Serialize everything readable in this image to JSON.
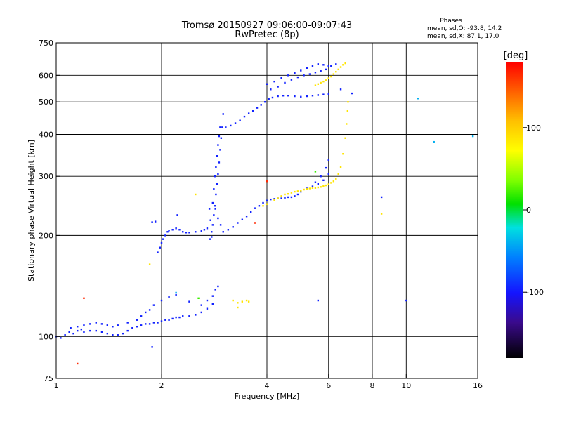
{
  "title_line1": "Tromsø 20150927 09:06:00-09:07:43",
  "title_line2": "RwPretec (8p)",
  "phases": {
    "header": "Phases",
    "line_o": "mean, sd,O: -93.8, 14.2",
    "line_x": "mean, sd,X:  87.1, 17.0"
  },
  "colorbar": {
    "label": "[deg]",
    "range": [
      -180,
      180
    ],
    "ticks": [
      100,
      0,
      -100
    ],
    "tick_labels": [
      "100",
      "0",
      "-100"
    ]
  },
  "chart_data": {
    "type": "scatter",
    "xlabel": "Frequency [MHz]",
    "ylabel": "Stationary phase Virtual Height [km]",
    "xscale": "log",
    "yscale": "log",
    "xlim": [
      1,
      16
    ],
    "ylim": [
      75,
      750
    ],
    "xticks": [
      1,
      2,
      4,
      6,
      8,
      10,
      16
    ],
    "xtick_labels": [
      "1",
      "2",
      "4",
      "6",
      "8",
      "10",
      "16"
    ],
    "yticks": [
      75,
      100,
      200,
      300,
      400,
      500,
      600,
      750
    ],
    "ytick_labels": [
      "75",
      "100",
      "200",
      "300",
      "400",
      "500",
      "600",
      "750"
    ],
    "grid": true,
    "series": [
      {
        "mode": "O",
        "phase_deg": -95,
        "points": [
          [
            1.0,
            100
          ],
          [
            1.03,
            99
          ],
          [
            1.06,
            101
          ],
          [
            1.09,
            103
          ],
          [
            1.12,
            102
          ],
          [
            1.15,
            104
          ],
          [
            1.18,
            105
          ],
          [
            1.2,
            103
          ],
          [
            1.25,
            104
          ],
          [
            1.3,
            104
          ],
          [
            1.35,
            103
          ],
          [
            1.4,
            102
          ],
          [
            1.45,
            101
          ],
          [
            1.5,
            101
          ],
          [
            1.55,
            102
          ],
          [
            1.6,
            104
          ],
          [
            1.65,
            106
          ],
          [
            1.7,
            107
          ],
          [
            1.75,
            108
          ],
          [
            1.8,
            109
          ],
          [
            1.85,
            109
          ],
          [
            1.9,
            110
          ],
          [
            1.95,
            110
          ],
          [
            2.0,
            111
          ],
          [
            2.05,
            112
          ],
          [
            2.1,
            112
          ],
          [
            2.15,
            113
          ],
          [
            2.2,
            114
          ],
          [
            2.25,
            114
          ],
          [
            2.3,
            115
          ],
          [
            2.4,
            115
          ],
          [
            2.5,
            116
          ],
          [
            2.6,
            118
          ],
          [
            2.7,
            121
          ],
          [
            2.8,
            125
          ],
          [
            1.1,
            106
          ],
          [
            1.15,
            107
          ],
          [
            1.2,
            108
          ],
          [
            1.25,
            109
          ],
          [
            1.3,
            110
          ],
          [
            1.35,
            109
          ],
          [
            1.4,
            108
          ],
          [
            1.45,
            107
          ],
          [
            1.5,
            108
          ],
          [
            1.6,
            110
          ],
          [
            1.7,
            112
          ],
          [
            1.75,
            115
          ],
          [
            1.8,
            118
          ],
          [
            1.85,
            120
          ],
          [
            1.9,
            124
          ],
          [
            2.0,
            128
          ],
          [
            2.1,
            131
          ],
          [
            2.2,
            133
          ],
          [
            2.4,
            127
          ],
          [
            2.6,
            124
          ],
          [
            2.7,
            128
          ],
          [
            2.8,
            132
          ],
          [
            2.85,
            138
          ],
          [
            2.9,
            141
          ],
          [
            1.95,
            178
          ],
          [
            1.98,
            184
          ],
          [
            2.0,
            190
          ],
          [
            2.02,
            195
          ],
          [
            2.05,
            200
          ],
          [
            2.08,
            205
          ],
          [
            2.1,
            207
          ],
          [
            2.15,
            208
          ],
          [
            2.2,
            210
          ],
          [
            2.25,
            208
          ],
          [
            2.3,
            205
          ],
          [
            2.35,
            204
          ],
          [
            2.4,
            204
          ],
          [
            2.5,
            205
          ],
          [
            2.6,
            206
          ],
          [
            2.65,
            208
          ],
          [
            2.7,
            210
          ],
          [
            1.88,
            219
          ],
          [
            1.92,
            220
          ],
          [
            2.22,
            230
          ],
          [
            2.75,
            195
          ],
          [
            2.78,
            205
          ],
          [
            2.8,
            215
          ],
          [
            2.82,
            230
          ],
          [
            2.84,
            245
          ],
          [
            2.86,
            265
          ],
          [
            2.88,
            285
          ],
          [
            2.9,
            305
          ],
          [
            2.92,
            330
          ],
          [
            2.94,
            360
          ],
          [
            2.96,
            390
          ],
          [
            2.98,
            420
          ],
          [
            3.0,
            460
          ],
          [
            2.8,
            250
          ],
          [
            2.82,
            275
          ],
          [
            2.84,
            300
          ],
          [
            2.86,
            320
          ],
          [
            2.88,
            345
          ],
          [
            2.9,
            372
          ],
          [
            2.92,
            395
          ],
          [
            2.94,
            420
          ],
          [
            2.85,
            240
          ],
          [
            2.9,
            225
          ],
          [
            2.95,
            215
          ],
          [
            2.78,
            198
          ],
          [
            2.76,
            222
          ],
          [
            2.74,
            240
          ],
          [
            3.0,
            205
          ],
          [
            3.1,
            208
          ],
          [
            3.2,
            212
          ],
          [
            3.3,
            218
          ],
          [
            3.4,
            223
          ],
          [
            3.5,
            228
          ],
          [
            3.6,
            235
          ],
          [
            3.7,
            241
          ],
          [
            3.8,
            245
          ],
          [
            3.9,
            250
          ],
          [
            4.0,
            254
          ],
          [
            4.1,
            256
          ],
          [
            4.2,
            257
          ],
          [
            4.3,
            258
          ],
          [
            4.4,
            258
          ],
          [
            4.5,
            259
          ],
          [
            4.6,
            260
          ],
          [
            4.7,
            260
          ],
          [
            4.8,
            262
          ],
          [
            4.9,
            265
          ],
          [
            5.0,
            270
          ],
          [
            5.2,
            276
          ],
          [
            5.4,
            280
          ],
          [
            5.6,
            285
          ],
          [
            5.8,
            292
          ],
          [
            6.0,
            305
          ],
          [
            5.7,
            300
          ],
          [
            5.9,
            318
          ],
          [
            6.0,
            335
          ],
          [
            5.5,
            288
          ],
          [
            3.05,
            420
          ],
          [
            3.15,
            425
          ],
          [
            3.25,
            432
          ],
          [
            3.35,
            440
          ],
          [
            3.45,
            452
          ],
          [
            3.55,
            462
          ],
          [
            3.65,
            470
          ],
          [
            3.75,
            480
          ],
          [
            3.85,
            490
          ],
          [
            3.95,
            500
          ],
          [
            4.05,
            510
          ],
          [
            4.15,
            515
          ],
          [
            4.3,
            520
          ],
          [
            4.45,
            522
          ],
          [
            4.6,
            522
          ],
          [
            4.8,
            520
          ],
          [
            5.0,
            518
          ],
          [
            5.2,
            520
          ],
          [
            5.4,
            522
          ],
          [
            5.6,
            524
          ],
          [
            5.8,
            526
          ],
          [
            6.0,
            528
          ],
          [
            4.0,
            565
          ],
          [
            4.2,
            575
          ],
          [
            4.4,
            590
          ],
          [
            4.6,
            600
          ],
          [
            4.8,
            610
          ],
          [
            5.0,
            620
          ],
          [
            5.2,
            630
          ],
          [
            5.4,
            640
          ],
          [
            5.6,
            648
          ],
          [
            5.8,
            645
          ],
          [
            6.0,
            640
          ],
          [
            4.1,
            545
          ],
          [
            4.3,
            555
          ],
          [
            4.5,
            570
          ],
          [
            4.7,
            582
          ],
          [
            4.9,
            592
          ],
          [
            5.1,
            600
          ],
          [
            5.3,
            605
          ],
          [
            5.5,
            612
          ],
          [
            5.7,
            618
          ],
          [
            5.9,
            625
          ],
          [
            6.1,
            640
          ],
          [
            6.3,
            648
          ],
          [
            1.88,
            93
          ],
          [
            5.6,
            128
          ],
          [
            8.5,
            260
          ],
          [
            10.0,
            128
          ],
          [
            6.5,
            545
          ],
          [
            7.0,
            530
          ]
        ]
      },
      {
        "mode": "X",
        "phase_deg": 87,
        "points": [
          [
            4.5,
            265
          ],
          [
            4.6,
            266
          ],
          [
            4.7,
            268
          ],
          [
            4.8,
            270
          ],
          [
            4.9,
            271
          ],
          [
            5.0,
            272
          ],
          [
            5.1,
            274
          ],
          [
            5.2,
            275
          ],
          [
            5.3,
            276
          ],
          [
            5.4,
            277
          ],
          [
            5.5,
            277
          ],
          [
            5.6,
            278
          ],
          [
            5.7,
            279
          ],
          [
            5.8,
            281
          ],
          [
            5.9,
            282
          ],
          [
            6.0,
            284
          ],
          [
            6.1,
            287
          ],
          [
            6.2,
            290
          ],
          [
            6.3,
            295
          ],
          [
            6.4,
            305
          ],
          [
            6.5,
            320
          ],
          [
            6.6,
            350
          ],
          [
            6.7,
            390
          ],
          [
            6.75,
            430
          ],
          [
            6.8,
            470
          ],
          [
            6.82,
            500
          ],
          [
            4.2,
            255
          ],
          [
            4.3,
            258
          ],
          [
            4.4,
            262
          ],
          [
            4.0,
            248
          ],
          [
            3.9,
            245
          ],
          [
            5.5,
            560
          ],
          [
            5.6,
            565
          ],
          [
            5.7,
            570
          ],
          [
            5.8,
            575
          ],
          [
            5.9,
            580
          ],
          [
            6.0,
            588
          ],
          [
            6.1,
            595
          ],
          [
            6.2,
            605
          ],
          [
            6.3,
            615
          ],
          [
            6.4,
            625
          ],
          [
            6.5,
            635
          ],
          [
            6.6,
            645
          ],
          [
            6.7,
            652
          ],
          [
            3.2,
            128
          ],
          [
            3.3,
            126
          ],
          [
            3.4,
            127
          ],
          [
            3.5,
            128
          ],
          [
            3.55,
            127
          ],
          [
            3.3,
            122
          ],
          [
            1.85,
            164
          ],
          [
            2.5,
            265
          ],
          [
            8.5,
            232
          ]
        ]
      },
      {
        "mode": "other",
        "phase_deg": 165,
        "points": [
          [
            1.15,
            83
          ],
          [
            1.2,
            130
          ],
          [
            3.7,
            218
          ],
          [
            4.0,
            290
          ]
        ]
      },
      {
        "mode": "other",
        "phase_deg": 20,
        "points": [
          [
            2.55,
            130
          ],
          [
            5.5,
            310
          ]
        ]
      },
      {
        "mode": "other",
        "phase_deg": -40,
        "points": [
          [
            10.8,
            512
          ],
          [
            12.0,
            380
          ],
          [
            15.5,
            395
          ],
          [
            2.2,
            135
          ]
        ]
      }
    ]
  }
}
